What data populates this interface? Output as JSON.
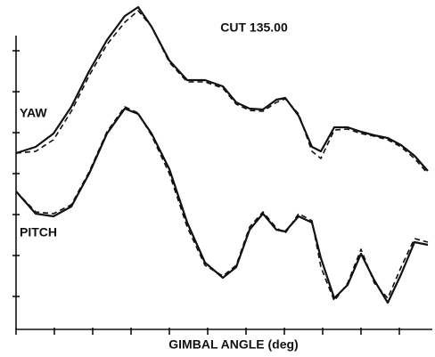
{
  "chart_data": {
    "type": "line",
    "annotation": "CUT 135.00",
    "xlabel": "GIMBAL ANGLE (deg)",
    "x": [
      0,
      22,
      42,
      62,
      82,
      102,
      122,
      137,
      152,
      172,
      192,
      212,
      232,
      247,
      262,
      277,
      292,
      302,
      317,
      332,
      342,
      357,
      372,
      387,
      402,
      417,
      432,
      447,
      462
    ],
    "series": [
      {
        "name": "YAW",
        "color": "#111111",
        "dashed": false,
        "values": [
          198,
          205,
          220,
          250,
          290,
          325,
          352,
          362,
          340,
          302,
          280,
          280,
          273,
          255,
          248,
          247,
          258,
          260,
          240,
          205,
          200,
          227,
          227,
          222,
          218,
          215,
          207,
          195,
          178
        ]
      },
      {
        "color": "#111111",
        "dashed": true,
        "values": [
          198,
          200,
          213,
          245,
          285,
          320,
          345,
          358,
          340,
          300,
          278,
          278,
          271,
          253,
          246,
          245,
          255,
          259,
          242,
          200,
          192,
          224,
          225,
          220,
          217,
          213,
          205,
          192,
          175
        ]
      },
      {
        "name": "PITCH",
        "color": "#111111",
        "dashed": false,
        "values": [
          155,
          130,
          127,
          138,
          175,
          220,
          248,
          242,
          220,
          180,
          120,
          75,
          58,
          70,
          112,
          130,
          112,
          110,
          127,
          120,
          80,
          35,
          50,
          85,
          55,
          30,
          62,
          98,
          95
        ]
      },
      {
        "color": "#111111",
        "dashed": true,
        "values": [
          155,
          132,
          130,
          140,
          177,
          222,
          250,
          243,
          218,
          175,
          115,
          72,
          60,
          72,
          115,
          132,
          114,
          108,
          130,
          122,
          70,
          32,
          52,
          90,
          52,
          35,
          70,
          102,
          98
        ]
      }
    ],
    "xlim": [
      0,
      467
    ],
    "ylim": [
      0,
      370
    ],
    "xticks": [
      0,
      43,
      86,
      129,
      172,
      215,
      258,
      301,
      344,
      387,
      430
    ],
    "yticks": [
      37,
      83,
      129,
      175,
      221,
      267,
      313
    ]
  }
}
